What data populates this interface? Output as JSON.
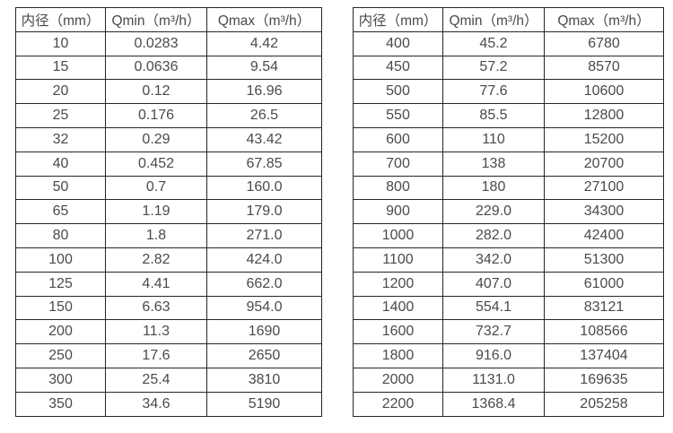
{
  "colors": {
    "background": "#ffffff",
    "border": "#262626",
    "text": "#4a4a4a"
  },
  "tables": [
    {
      "id": "flow-table-small-diameters",
      "headers": [
        "内径（mm）",
        "Qmin（m³/h）",
        "Qmax（m³/h）"
      ],
      "rows": [
        [
          "10",
          "0.0283",
          "4.42"
        ],
        [
          "15",
          "0.0636",
          "9.54"
        ],
        [
          "20",
          "0.12",
          "16.96"
        ],
        [
          "25",
          "0.176",
          "26.5"
        ],
        [
          "32",
          "0.29",
          "43.42"
        ],
        [
          "40",
          "0.452",
          "67.85"
        ],
        [
          "50",
          "0.7",
          "160.0"
        ],
        [
          "65",
          "1.19",
          "179.0"
        ],
        [
          "80",
          "1.8",
          "271.0"
        ],
        [
          "100",
          "2.82",
          "424.0"
        ],
        [
          "125",
          "4.41",
          "662.0"
        ],
        [
          "150",
          "6.63",
          "954.0"
        ],
        [
          "200",
          "11.3",
          "1690"
        ],
        [
          "250",
          "17.6",
          "2650"
        ],
        [
          "300",
          "25.4",
          "3810"
        ],
        [
          "350",
          "34.6",
          "5190"
        ]
      ]
    },
    {
      "id": "flow-table-large-diameters",
      "headers": [
        "内径（mm）",
        "Qmin（m³/h）",
        "Qmax（m³/h）"
      ],
      "rows": [
        [
          "400",
          "45.2",
          "6780"
        ],
        [
          "450",
          "57.2",
          "8570"
        ],
        [
          "500",
          "77.6",
          "10600"
        ],
        [
          "550",
          "85.5",
          "12800"
        ],
        [
          "600",
          "110",
          "15200"
        ],
        [
          "700",
          "138",
          "20700"
        ],
        [
          "800",
          "180",
          "27100"
        ],
        [
          "900",
          "229.0",
          "34300"
        ],
        [
          "1000",
          "282.0",
          "42400"
        ],
        [
          "1100",
          "342.0",
          "51300"
        ],
        [
          "1200",
          "407.0",
          "61000"
        ],
        [
          "1400",
          "554.1",
          "83121"
        ],
        [
          "1600",
          "732.7",
          "108566"
        ],
        [
          "1800",
          "916.0",
          "137404"
        ],
        [
          "2000",
          "1131.0",
          "169635"
        ],
        [
          "2200",
          "1368.4",
          "205258"
        ]
      ]
    }
  ]
}
